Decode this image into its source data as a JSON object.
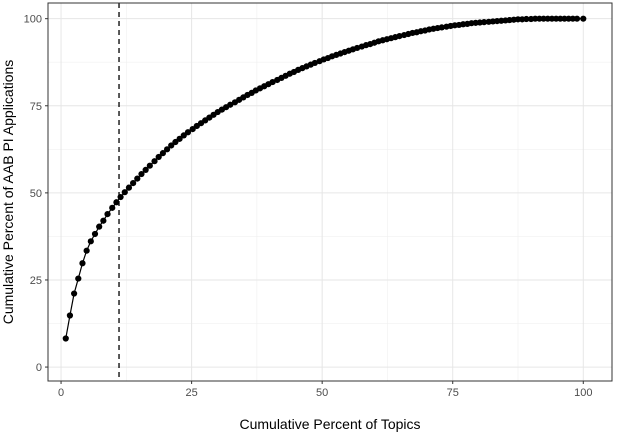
{
  "chart_data": {
    "type": "line",
    "title": "",
    "xlabel": "Cumulative Percent of Topics",
    "ylabel": "Cumulative Percent of AAB PI Applications",
    "xlim": [
      -2.5,
      105.5
    ],
    "ylim": [
      -4,
      104.5
    ],
    "x_ticks": [
      0,
      25,
      50,
      75,
      100
    ],
    "x_tick_labels": [
      "0",
      "25",
      "50",
      "75",
      "100"
    ],
    "y_ticks": [
      0,
      25,
      50,
      75,
      100
    ],
    "y_tick_labels": [
      "0",
      "25",
      "50",
      "75",
      "100"
    ],
    "grid": true,
    "legend": "none",
    "reference_lines": [
      {
        "orientation": "vertical",
        "x": 11.1,
        "style": "dashed",
        "color": "#000000"
      }
    ],
    "series": [
      {
        "color": "#000000",
        "points": [
          [
            0.9,
            8.2
          ],
          [
            1.7,
            14.8
          ],
          [
            2.5,
            21.1
          ],
          [
            3.3,
            25.4
          ],
          [
            4.1,
            29.8
          ],
          [
            4.9,
            33.4
          ],
          [
            5.7,
            36.1
          ],
          [
            6.5,
            38.2
          ],
          [
            7.3,
            40.3
          ],
          [
            8.1,
            42.0
          ],
          [
            8.9,
            43.9
          ],
          [
            9.8,
            45.7
          ],
          [
            10.6,
            47.3
          ],
          [
            11.4,
            48.8
          ],
          [
            12.2,
            50.2
          ],
          [
            13.0,
            51.5
          ],
          [
            13.8,
            52.8
          ],
          [
            14.6,
            54.1
          ],
          [
            15.4,
            55.4
          ],
          [
            16.2,
            56.6
          ],
          [
            17.0,
            57.8
          ],
          [
            17.9,
            59.1
          ],
          [
            18.7,
            60.3
          ],
          [
            19.5,
            61.4
          ],
          [
            20.3,
            62.5
          ],
          [
            21.1,
            63.6
          ],
          [
            21.9,
            64.6
          ],
          [
            22.7,
            65.5
          ],
          [
            23.5,
            66.5
          ],
          [
            24.3,
            67.4
          ],
          [
            25.2,
            68.3
          ],
          [
            26.0,
            69.2
          ],
          [
            26.8,
            70.0
          ],
          [
            27.6,
            70.8
          ],
          [
            28.4,
            71.6
          ],
          [
            29.2,
            72.4
          ],
          [
            30.0,
            73.2
          ],
          [
            30.8,
            73.9
          ],
          [
            31.6,
            74.6
          ],
          [
            32.4,
            75.3
          ],
          [
            33.3,
            76.0
          ],
          [
            34.1,
            76.7
          ],
          [
            34.9,
            77.4
          ],
          [
            35.7,
            78.1
          ],
          [
            36.5,
            78.7
          ],
          [
            37.3,
            79.4
          ],
          [
            38.1,
            80.0
          ],
          [
            38.9,
            80.6
          ],
          [
            39.7,
            81.2
          ],
          [
            40.5,
            81.8
          ],
          [
            41.4,
            82.4
          ],
          [
            42.2,
            83.0
          ],
          [
            43.0,
            83.6
          ],
          [
            43.8,
            84.2
          ],
          [
            44.6,
            84.7
          ],
          [
            45.4,
            85.3
          ],
          [
            46.2,
            85.8
          ],
          [
            47.0,
            86.3
          ],
          [
            47.8,
            86.8
          ],
          [
            48.6,
            87.3
          ],
          [
            49.5,
            87.8
          ],
          [
            50.3,
            88.3
          ],
          [
            51.1,
            88.7
          ],
          [
            51.9,
            89.2
          ],
          [
            52.7,
            89.6
          ],
          [
            53.5,
            90.0
          ],
          [
            54.3,
            90.4
          ],
          [
            55.1,
            90.8
          ],
          [
            55.9,
            91.2
          ],
          [
            56.7,
            91.6
          ],
          [
            57.6,
            92.0
          ],
          [
            58.4,
            92.4
          ],
          [
            59.2,
            92.7
          ],
          [
            60.0,
            93.1
          ],
          [
            60.8,
            93.5
          ],
          [
            61.6,
            93.8
          ],
          [
            62.4,
            94.1
          ],
          [
            63.2,
            94.4
          ],
          [
            64.0,
            94.7
          ],
          [
            64.8,
            95.0
          ],
          [
            65.7,
            95.3
          ],
          [
            66.5,
            95.6
          ],
          [
            67.3,
            95.9
          ],
          [
            68.1,
            96.1
          ],
          [
            68.9,
            96.4
          ],
          [
            69.7,
            96.6
          ],
          [
            70.5,
            96.9
          ],
          [
            71.3,
            97.1
          ],
          [
            72.1,
            97.3
          ],
          [
            72.9,
            97.5
          ],
          [
            73.8,
            97.7
          ],
          [
            74.6,
            97.9
          ],
          [
            75.4,
            98.1
          ],
          [
            76.2,
            98.2
          ],
          [
            77.0,
            98.4
          ],
          [
            77.8,
            98.5
          ],
          [
            78.6,
            98.7
          ],
          [
            79.4,
            98.8
          ],
          [
            80.2,
            98.9
          ],
          [
            81.0,
            99.0
          ],
          [
            81.9,
            99.1
          ],
          [
            82.7,
            99.2
          ],
          [
            83.5,
            99.3
          ],
          [
            84.3,
            99.4
          ],
          [
            85.1,
            99.5
          ],
          [
            85.9,
            99.6
          ],
          [
            86.7,
            99.7
          ],
          [
            87.5,
            99.8
          ],
          [
            88.3,
            99.8
          ],
          [
            89.1,
            99.9
          ],
          [
            90.0,
            99.9
          ],
          [
            90.8,
            100.0
          ],
          [
            91.6,
            100.0
          ],
          [
            92.4,
            100.0
          ],
          [
            93.2,
            100.0
          ],
          [
            94.0,
            100.0
          ],
          [
            94.8,
            100.0
          ],
          [
            95.6,
            100.0
          ],
          [
            96.4,
            100.0
          ],
          [
            97.2,
            100.0
          ],
          [
            98.0,
            100.0
          ],
          [
            98.8,
            100.0
          ],
          [
            100.0,
            100.0
          ]
        ]
      }
    ]
  }
}
